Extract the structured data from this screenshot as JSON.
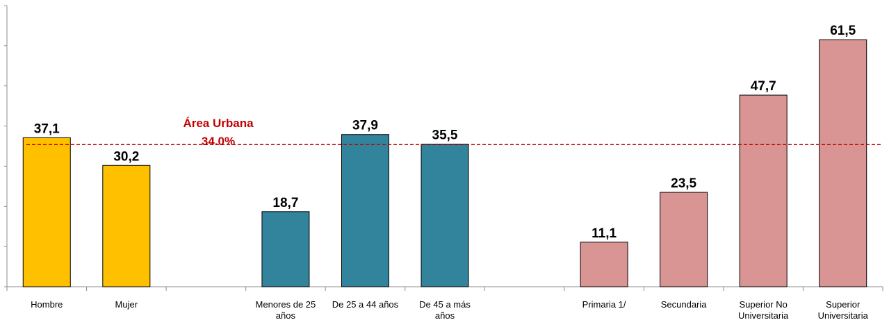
{
  "chart_data": {
    "type": "bar",
    "categories": [
      [
        "Hombre"
      ],
      [
        "Mujer"
      ],
      [
        ""
      ],
      [
        "Menores de 25",
        "años"
      ],
      [
        "De 25 a 44 años"
      ],
      [
        "De 45 a más",
        "años"
      ],
      [
        ""
      ],
      [
        "Primaria  1/"
      ],
      [
        "Secundaria"
      ],
      [
        "Superior No",
        "Universitaria"
      ],
      [
        "Superior",
        "Universitaria"
      ]
    ],
    "values": [
      37.1,
      30.2,
      null,
      18.7,
      37.9,
      35.5,
      null,
      11.1,
      23.5,
      47.7,
      61.5
    ],
    "value_labels": [
      "37,1",
      "30,2",
      "",
      "18,7",
      "37,9",
      "35,5",
      "",
      "11,1",
      "23,5",
      "47,7",
      "61,5"
    ],
    "bar_colors": [
      "#FFC000",
      "#FFC000",
      "",
      "#31849B",
      "#31849B",
      "#31849B",
      "",
      "#D99594",
      "#D99594",
      "#D99594",
      "#D99594"
    ],
    "ylim": [
      0,
      70
    ],
    "grid": false,
    "reference_line": {
      "value": 34.0,
      "label_line1": "Área Urbana",
      "label_line2": "34.0%",
      "color": "#C00000"
    }
  }
}
